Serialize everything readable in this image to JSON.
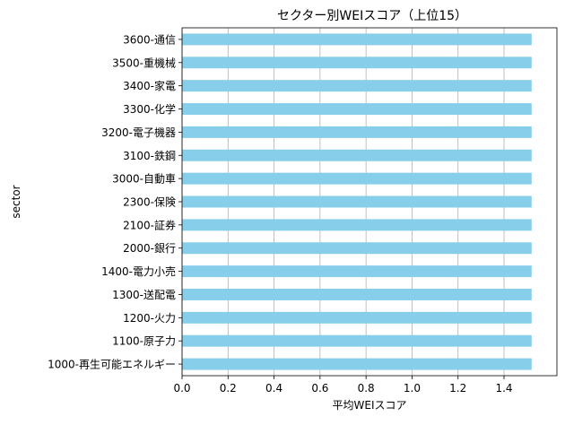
{
  "chart_data": {
    "type": "bar",
    "orientation": "horizontal",
    "title": "セクター別WEIスコア（上位15）",
    "xlabel": "平均WEIスコア",
    "ylabel": "sector",
    "categories": [
      "3600-通信",
      "3500-重機械",
      "3400-家電",
      "3300-化学",
      "3200-電子機器",
      "3100-鉄鋼",
      "3000-自動車",
      "2300-保険",
      "2100-証券",
      "2000-銀行",
      "1400-電力小売",
      "1300-送配電",
      "1200-火力",
      "1100-原子力",
      "1000-再生可能エネルギー"
    ],
    "values": [
      1.52,
      1.52,
      1.52,
      1.52,
      1.52,
      1.52,
      1.52,
      1.52,
      1.52,
      1.52,
      1.52,
      1.52,
      1.52,
      1.52,
      1.52
    ],
    "xlim": [
      0,
      1.63
    ],
    "xticks": [
      "0.0",
      "0.2",
      "0.4",
      "0.6",
      "0.8",
      "1.0",
      "1.2",
      "1.4"
    ],
    "x_grid": true,
    "bar_color": "#87CEEB",
    "grid_color": "#b0b0b0"
  }
}
